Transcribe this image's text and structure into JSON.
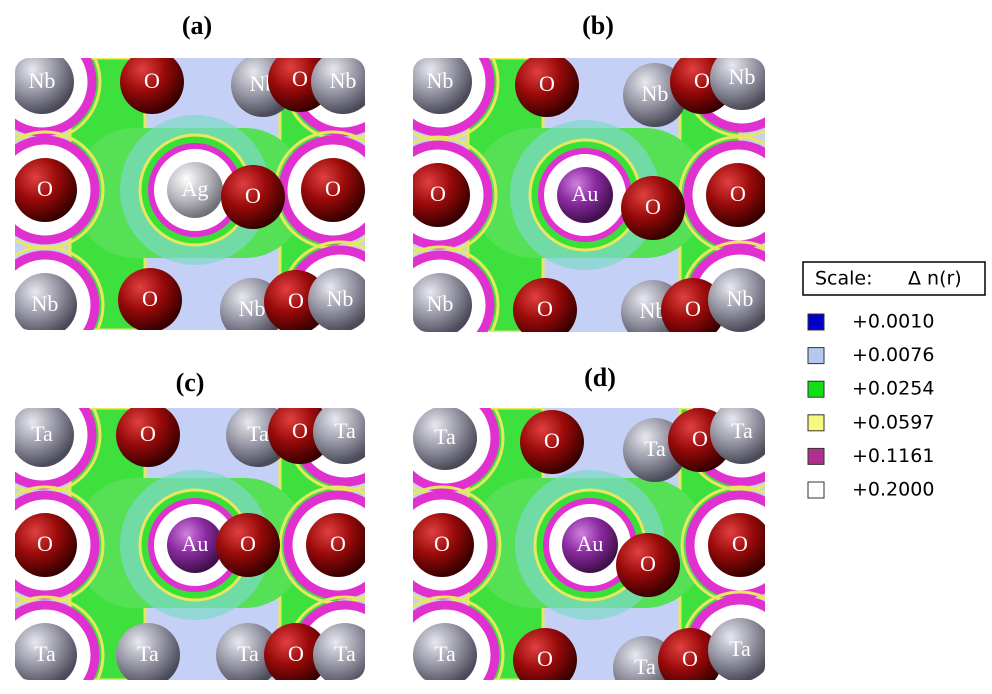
{
  "panels": [
    {
      "label": "(a)",
      "atoms": [
        "Nb",
        "O",
        "Nb",
        "O",
        "Nb",
        "O",
        "Ag",
        "O",
        "O",
        "Nb",
        "O",
        "Nb",
        "O",
        "Nb"
      ]
    },
    {
      "label": "(b)",
      "atoms": [
        "Nb",
        "O",
        "Nb",
        "O",
        "Nb",
        "O",
        "Au",
        "O",
        "O",
        "Nb",
        "O",
        "Nb",
        "O",
        "Nb"
      ]
    },
    {
      "label": "(c)",
      "atoms": [
        "Ta",
        "O",
        "Ta",
        "O",
        "Ta",
        "O",
        "Au",
        "O",
        "O",
        "Ta",
        "Ta",
        "Ta",
        "O",
        "Ta"
      ]
    },
    {
      "label": "(d)",
      "atoms": [
        "Ta",
        "O",
        "Ta",
        "O",
        "Ta",
        "O",
        "Au",
        "O",
        "O",
        "Ta",
        "O",
        "Ta",
        "O",
        "Ta"
      ]
    }
  ],
  "legend": {
    "title": "Scale:",
    "quantity": "Δ n(r)",
    "entries": [
      "+0.0010",
      "+0.0076",
      "+0.0254",
      "+0.0597",
      "+0.1161",
      "+0.2000"
    ]
  }
}
